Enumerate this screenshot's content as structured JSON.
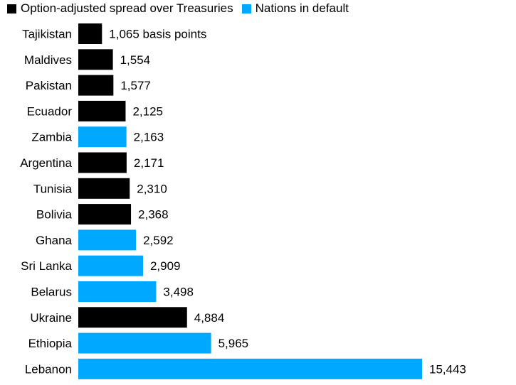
{
  "chart_data": {
    "type": "bar",
    "orientation": "horizontal",
    "legend": {
      "placement": "top-left",
      "items": [
        {
          "label": "Option-adjusted spread over Treasuries",
          "color": "#000000"
        },
        {
          "label": "Nations in default",
          "color": "#00a8ff"
        }
      ]
    },
    "unit_suffix": "basis points",
    "xlim": [
      0,
      15443
    ],
    "grid": false,
    "categories": [
      "Tajikistan",
      "Maldives",
      "Pakistan",
      "Ecuador",
      "Zambia",
      "Argentina",
      "Tunisia",
      "Bolivia",
      "Ghana",
      "Sri Lanka",
      "Belarus",
      "Ukraine",
      "Ethiopia",
      "Lebanon"
    ],
    "values": [
      1065,
      1554,
      1577,
      2125,
      2163,
      2171,
      2310,
      2368,
      2592,
      2909,
      3498,
      4884,
      5965,
      15443
    ],
    "value_labels": [
      "1,065 basis points",
      "1,554",
      "1,577",
      "2,125",
      "2,163",
      "2,171",
      "2,310",
      "2,368",
      "2,592",
      "2,909",
      "3,498",
      "4,884",
      "5,965",
      "15,443"
    ],
    "default": [
      false,
      false,
      false,
      false,
      true,
      false,
      false,
      false,
      true,
      true,
      true,
      false,
      true,
      true
    ]
  }
}
